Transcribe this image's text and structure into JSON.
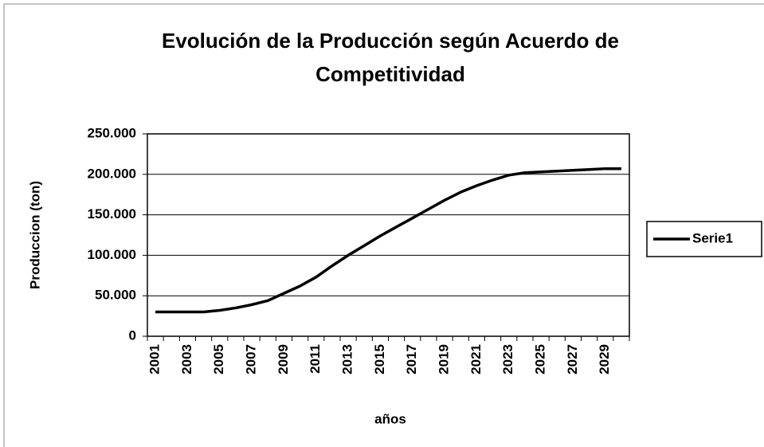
{
  "chart_data": {
    "type": "line",
    "title": "Evolución de la Producción según Acuerdo de Competitividad",
    "x_label": "años",
    "y_label": "Produccion (ton)",
    "categories": [
      "2001",
      null,
      "2003",
      null,
      "2005",
      null,
      "2007",
      null,
      "2009",
      null,
      "2011",
      null,
      "2013",
      null,
      "2015",
      null,
      "2017",
      null,
      "2019",
      null,
      "2021",
      null,
      "2023",
      null,
      "2025",
      null,
      "2027",
      null,
      "2029",
      null
    ],
    "series": [
      {
        "name": "Serie1",
        "color": "#000000",
        "values": [
          30000,
          30000,
          30000,
          30000,
          32000,
          35000,
          39000,
          44000,
          53000,
          62000,
          73000,
          87000,
          100000,
          112000,
          124000,
          135000,
          146000,
          157000,
          168000,
          178000,
          186000,
          193000,
          199000,
          202000,
          203000,
          204000,
          205000,
          206000,
          207000,
          207000
        ]
      }
    ],
    "ylim": [
      0,
      250000
    ],
    "yticks": [
      0,
      {
        "value": 50000,
        "label": "50.000"
      },
      {
        "value": 100000,
        "label": "100.000"
      },
      {
        "value": 150000,
        "label": "150.000"
      },
      {
        "value": 200000,
        "label": "200.000"
      },
      {
        "value": 250000,
        "label": "250.000"
      }
    ],
    "grid": true,
    "legend": "right"
  }
}
